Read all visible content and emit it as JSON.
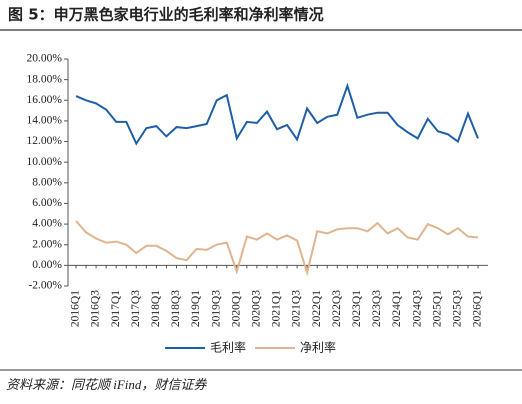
{
  "chart_data": {
    "type": "line",
    "title": "图 5：申万黑色家电行业的毛利率和净利率情况",
    "source": "资料来源：同花顺 iFind，财信证券",
    "categories": [
      "2016Q1",
      null,
      "2016Q3",
      null,
      "2017Q1",
      null,
      "2017Q3",
      null,
      "2018Q1",
      null,
      "2018Q3",
      null,
      "2019Q1",
      null,
      "2019Q3",
      null,
      "2020Q1",
      null,
      "2020Q3",
      null,
      "2021Q1",
      null,
      "2021Q3",
      null,
      "2022Q1",
      null,
      "2022Q3",
      null,
      "2023Q1",
      null,
      "2023Q3",
      null,
      "2024Q1",
      null,
      "2024Q3",
      null,
      "2025Q1",
      null,
      "2025Q3",
      null,
      "2026Q1"
    ],
    "series": [
      {
        "name": "毛利率",
        "color": "#1f5fa8",
        "values": [
          16.4,
          16.0,
          15.7,
          15.1,
          13.9,
          13.9,
          11.8,
          13.3,
          13.5,
          12.5,
          13.4,
          13.3,
          13.5,
          13.7,
          16.0,
          16.5,
          12.3,
          13.9,
          13.8,
          14.9,
          13.2,
          13.6,
          12.2,
          15.2,
          13.8,
          14.4,
          14.6,
          17.4,
          14.3,
          14.6,
          14.8,
          14.8,
          13.6,
          12.9,
          12.3,
          14.2,
          13.0,
          12.7,
          12.0,
          14.7,
          12.3
        ]
      },
      {
        "name": "净利率",
        "color": "#e0b48e",
        "values": [
          4.3,
          3.2,
          2.6,
          2.2,
          2.3,
          2.0,
          1.2,
          1.9,
          1.9,
          1.4,
          0.7,
          0.5,
          1.6,
          1.5,
          2.0,
          2.2,
          -0.6,
          2.8,
          2.5,
          3.1,
          2.5,
          2.9,
          2.4,
          -0.7,
          3.3,
          3.1,
          3.5,
          3.6,
          3.6,
          3.3,
          4.1,
          3.1,
          3.6,
          2.7,
          2.5,
          4.0,
          3.6,
          3.0,
          3.6,
          2.8,
          2.7
        ]
      }
    ],
    "ylim": [
      -2,
      20
    ],
    "yticks": [
      {
        "value": -2,
        "label": "-2.00%"
      },
      {
        "value": 0,
        "label": "0.00%"
      },
      {
        "value": 2,
        "label": "2.00%"
      },
      {
        "value": 4,
        "label": "4.00%"
      },
      {
        "value": 6,
        "label": "6.00%"
      },
      {
        "value": 8,
        "label": "8.00%"
      },
      {
        "value": 10,
        "label": "10.00%"
      },
      {
        "value": 12,
        "label": "12.00%"
      },
      {
        "value": 14,
        "label": "14.00%"
      },
      {
        "value": 16,
        "label": "16.00%"
      },
      {
        "value": 18,
        "label": "18.00%"
      },
      {
        "value": 20,
        "label": "20.00%"
      }
    ],
    "grid": false,
    "legend": "bottom"
  }
}
